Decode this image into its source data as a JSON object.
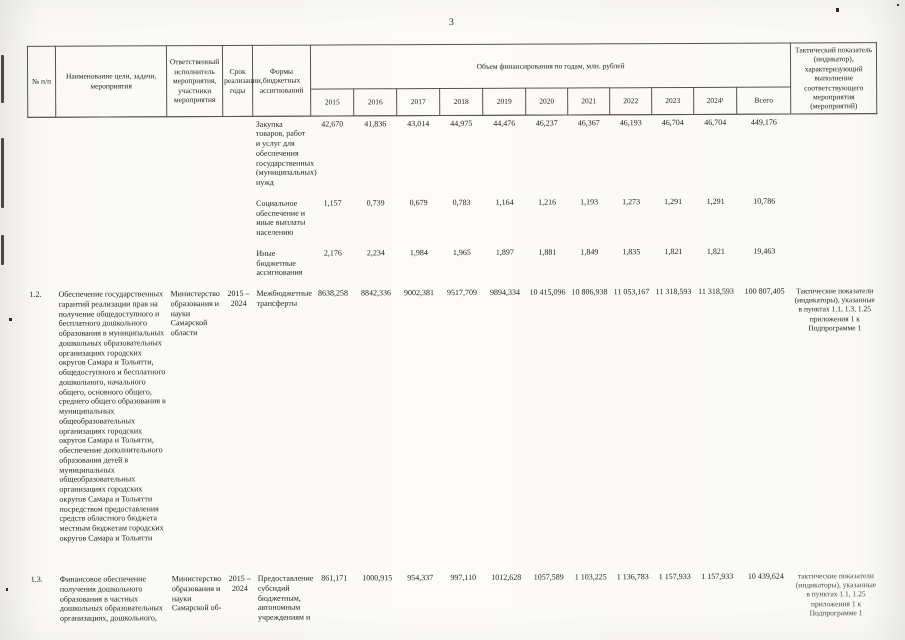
{
  "page": {
    "number": "3"
  },
  "table": {
    "headers": {
      "num": "№ п/п",
      "name": "Наименование цели, задачи, мероприятия",
      "responsible": "Ответственный исполнитель мероприятия, участники мероприятия",
      "term": "Срок реализации, годы",
      "forms": "Формы бюджетных ассигнований",
      "financing": "Объем финансирования по годам, млн. рублей",
      "years": [
        "2015",
        "2016",
        "2017",
        "2018",
        "2019",
        "2020",
        "2021",
        "2022",
        "2023",
        "2024¹",
        "Всего"
      ],
      "indicator": "Тактический показатель (индикатор), характеризующий выполнение соответствующего мероприятия (мероприятий)"
    },
    "rows": [
      {
        "num": "",
        "name": "",
        "responsible": "",
        "term": "",
        "forms": "Закупка товаров, работ и услуг для обеспечения государственных (муниципальных) нужд",
        "values": [
          "42,670",
          "41,836",
          "43,014",
          "44,975",
          "44,476",
          "46,237",
          "46,367",
          "46,193",
          "46,704",
          "46,704",
          "449,176"
        ],
        "indicator": ""
      },
      {
        "num": "",
        "name": "",
        "responsible": "",
        "term": "",
        "forms": "Социальное обеспечение и иные выплаты населению",
        "values": [
          "1,157",
          "0,739",
          "0,679",
          "0,783",
          "1,164",
          "1,216",
          "1,193",
          "1,273",
          "1,291",
          "1,291",
          "10,786"
        ],
        "indicator": ""
      },
      {
        "num": "",
        "name": "",
        "responsible": "",
        "term": "",
        "forms": "Иные бюджетные ассигнования",
        "values": [
          "2,176",
          "2,234",
          "1,984",
          "1,965",
          "1,897",
          "1,881",
          "1,849",
          "1,835",
          "1,821",
          "1,821",
          "19,463"
        ],
        "indicator": ""
      },
      {
        "num": "1.2.",
        "name": "Обеспечение государственных гарантий реализации прав на получение общедоступного и бесплатного дошкольного образования в муниципальных дошкольных образовательных организациях городских округов Самара и Тольятти, общедоступного и бесплатного дошкольного, начального общего, основного общего, среднего общего образования в муниципальных общеобразовательных организациях городских округов Самара и Тольятти, обеспечение дополнительного образования детей в муниципальных общеобразовательных организациях городских округов Самара и Тольятти посредством предоставления средств областного бюджета местным бюджетам городских округов Самара и Тольятти",
        "responsible": "Министерство образования и науки Самарской области",
        "term": "2015 – 2024",
        "forms": "Межбюджетные трансферты",
        "values": [
          "8638,258",
          "8842,336",
          "9002,381",
          "9517,709",
          "9894,334",
          "10 415,096",
          "10 806,938",
          "11 053,167",
          "11 318,593",
          "11 318,593",
          "100 807,405"
        ],
        "indicator": "Тактические показатели (индикаторы), указанные в пунктах 1.1, 1.3, 1.25 приложения 1 к Подпрограмме 1"
      },
      {
        "num": "1.3.",
        "name": "Финансовое обеспечение получения дошкольного образования в частных дошкольных образовательных организациях, дошкольного,",
        "responsible": "Министерство образования и науки Самарской об-",
        "term": "2015 – 2024",
        "forms": "Предоставление субсидий бюджетным, автономным учреждениям и",
        "values": [
          "861,171",
          "1000,915",
          "954,337",
          "997,110",
          "1012,628",
          "1057,589",
          "1 103,225",
          "1 136,783",
          "1 157,933",
          "1 157,933",
          "10 439,624"
        ],
        "indicator": "тактические показатели (индикаторы), указанные в пунктах 1.1, 1.25 приложения 1 к Подпрограмме 1"
      }
    ]
  }
}
